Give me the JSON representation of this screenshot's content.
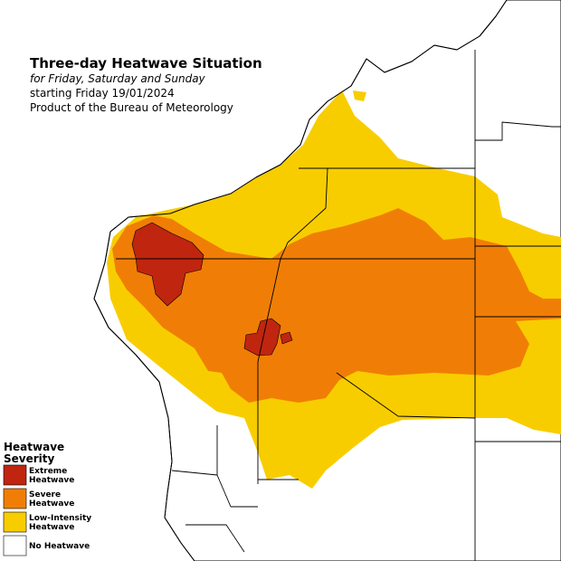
{
  "header": {
    "title": "Three-day Heatwave Situation",
    "subtitle": "for Friday, Saturday and Sunday",
    "start": "starting Friday 19/01/2024",
    "source": "Product of the Bureau of Meteorology"
  },
  "legend": {
    "title_lines": [
      "Heatwave",
      "Severity"
    ],
    "items": [
      {
        "label_lines": [
          "Extreme",
          "Heatwave"
        ],
        "color": "#c0250f"
      },
      {
        "label_lines": [
          "Severe",
          "Heatwave"
        ],
        "color": "#f07e06"
      },
      {
        "label_lines": [
          "Low-Intensity",
          "Heatwave"
        ],
        "color": "#f8cd00"
      },
      {
        "label_lines": [
          "No Heatwave"
        ],
        "color": "#ffffff"
      }
    ]
  }
}
